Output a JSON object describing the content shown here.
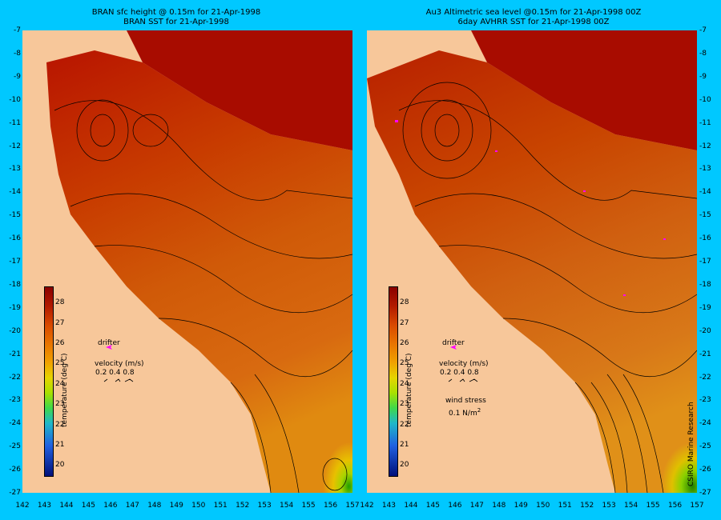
{
  "left_panel": {
    "title_line1": "BRAN sfc height @ 0.15m  for 21-Apr-1998",
    "title_line2": "BRAN SST for 21-Apr-1998",
    "drifter_label": "drifter",
    "velocity_label": "velocity (m/s)",
    "velocity_values": "0.2 0.4 0.8",
    "colorbar_title": "temperature (deg C)"
  },
  "right_panel": {
    "title_line1": "Au3 Altimetric sea level  @0.15m  for 21-Apr-1998 00Z",
    "title_line2": "6day AVHRR SST for 21-Apr-1998 00Z",
    "drifter_label": "drifter",
    "velocity_label": "velocity (m/s)",
    "velocity_values": "0.2 0.4 0.8",
    "wind_label": "wind stress",
    "wind_value": "0.1 N/m",
    "wind_exp": "2",
    "colorbar_title": "temperature (deg C)",
    "credit": "CSIRO Marine Research"
  },
  "axes": {
    "y_ticks": [
      "-7",
      "-8",
      "-9",
      "-10",
      "-11",
      "-12",
      "-13",
      "-14",
      "-15",
      "-16",
      "-17",
      "-18",
      "-19",
      "-20",
      "-21",
      "-22",
      "-23",
      "-24",
      "-25",
      "-26",
      "-27"
    ],
    "x_ticks": [
      "142",
      "143",
      "144",
      "145",
      "146",
      "147",
      "148",
      "149",
      "150",
      "151",
      "152",
      "153",
      "154",
      "155",
      "156",
      "157"
    ],
    "x_last_left": "157",
    "x_first_right": "142"
  },
  "colorbar": {
    "ticks": [
      "28",
      "27",
      "26",
      "25",
      "24",
      "23",
      "22",
      "21",
      "20"
    ],
    "range": [
      19.5,
      28.8
    ]
  },
  "colors": {
    "background": "#00c8ff",
    "land": "#f7c79a",
    "sea_hot": "#b01800",
    "sea_warm": "#d85a00",
    "drifter": "#ff00ff"
  }
}
